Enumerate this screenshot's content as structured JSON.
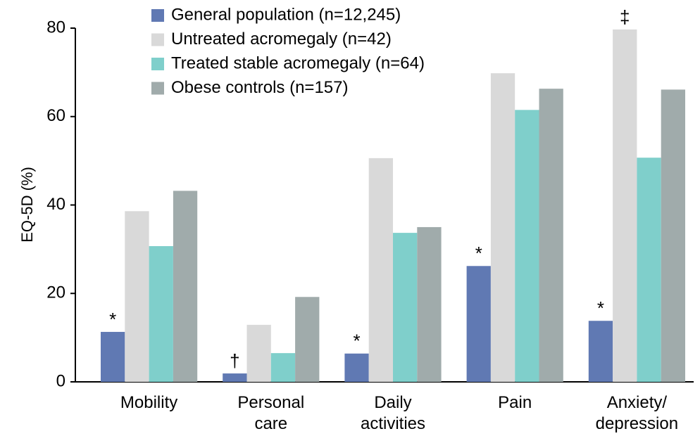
{
  "chart_data": {
    "type": "bar",
    "y_label": "EQ-5D (%)",
    "categories": [
      "Mobility",
      "Personal care",
      "Daily activities",
      "Pain",
      "Anxiety/ depression"
    ],
    "series": [
      {
        "name": "General population (n=12,245)",
        "color": "#6079b3",
        "values": [
          11.3,
          1.9,
          6.4,
          26.2,
          13.8
        ]
      },
      {
        "name": "Untreated acromegaly (n=42)",
        "color": "#d9d9d9",
        "values": [
          38.6,
          12.9,
          50.6,
          69.8,
          79.7
        ]
      },
      {
        "name": "Treated stable acromegaly (n=64)",
        "color": "#7fcfcb",
        "values": [
          30.7,
          6.5,
          33.7,
          61.5,
          50.7
        ]
      },
      {
        "name": "Obese controls (n=157)",
        "color": "#a0abab",
        "values": [
          43.2,
          19.2,
          35.0,
          66.3,
          66.1
        ]
      }
    ],
    "annotations": [
      {
        "category": 0,
        "series": 0,
        "text": "*"
      },
      {
        "category": 1,
        "series": 0,
        "text": "†"
      },
      {
        "category": 2,
        "series": 0,
        "text": "*"
      },
      {
        "category": 3,
        "series": 0,
        "text": "*"
      },
      {
        "category": 4,
        "series": 0,
        "text": "*"
      },
      {
        "category": 4,
        "series": 1,
        "text": "‡"
      }
    ],
    "ylim": [
      0,
      80
    ],
    "yticks": [
      0,
      20,
      40,
      60,
      80
    ],
    "grid": false,
    "legend": "top"
  }
}
